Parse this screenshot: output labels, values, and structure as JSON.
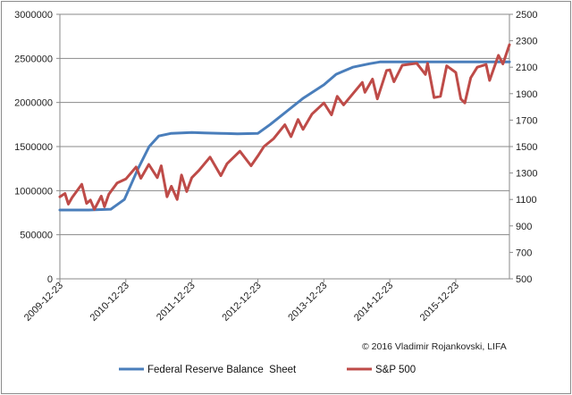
{
  "chart_data": {
    "type": "line",
    "title": "",
    "xlabel": "",
    "ylabel": "",
    "x_tick_labels": [
      "2009-12-23",
      "2010-12-23",
      "2011-12-23",
      "2012-12-23",
      "2013-12-23",
      "2014-12-23",
      "2015-12-23"
    ],
    "y_left": {
      "min": 0,
      "max": 3000000,
      "step": 500000,
      "tick_labels": [
        "0",
        "500000",
        "1000000",
        "1500000",
        "2000000",
        "2500000",
        "3000000"
      ]
    },
    "y_right": {
      "min": 500,
      "max": 2500,
      "step": 200,
      "tick_labels": [
        "500",
        "700",
        "900",
        "1100",
        "1300",
        "1500",
        "1700",
        "1900",
        "2100",
        "2300",
        "2500"
      ]
    },
    "x_range": [
      "2009-12-23",
      "2016-10-15"
    ],
    "grid": "horizontal",
    "legend_position": "bottom",
    "annotation": "© 2016 Vladimir Rojankovski, LIFA",
    "series": [
      {
        "name": "Federal Reserve Balance  Sheet",
        "axis": "left",
        "color": "#4a7ebb",
        "points": [
          [
            "2009-12-23",
            780000
          ],
          [
            "2010-06-01",
            780000
          ],
          [
            "2010-10-01",
            790000
          ],
          [
            "2010-12-15",
            900000
          ],
          [
            "2011-03-01",
            1250000
          ],
          [
            "2011-05-01",
            1500000
          ],
          [
            "2011-06-23",
            1620000
          ],
          [
            "2011-09-01",
            1650000
          ],
          [
            "2011-12-23",
            1660000
          ],
          [
            "2012-03-01",
            1655000
          ],
          [
            "2012-06-01",
            1650000
          ],
          [
            "2012-09-01",
            1645000
          ],
          [
            "2012-12-23",
            1650000
          ],
          [
            "2013-03-01",
            1750000
          ],
          [
            "2013-06-01",
            1900000
          ],
          [
            "2013-09-01",
            2050000
          ],
          [
            "2013-12-23",
            2200000
          ],
          [
            "2014-03-01",
            2320000
          ],
          [
            "2014-06-01",
            2400000
          ],
          [
            "2014-09-01",
            2440000
          ],
          [
            "2014-10-29",
            2460000
          ],
          [
            "2015-06-01",
            2460000
          ],
          [
            "2016-01-01",
            2460000
          ],
          [
            "2016-10-15",
            2460000
          ]
        ]
      },
      {
        "name": "S&P 500",
        "axis": "right",
        "color": "#be4b48",
        "points": [
          [
            "2009-12-23",
            1120
          ],
          [
            "2010-01-20",
            1145
          ],
          [
            "2010-02-08",
            1065
          ],
          [
            "2010-03-01",
            1115
          ],
          [
            "2010-04-23",
            1215
          ],
          [
            "2010-05-20",
            1070
          ],
          [
            "2010-06-10",
            1095
          ],
          [
            "2010-07-02",
            1025
          ],
          [
            "2010-08-09",
            1125
          ],
          [
            "2010-08-27",
            1045
          ],
          [
            "2010-09-20",
            1140
          ],
          [
            "2010-11-05",
            1225
          ],
          [
            "2010-12-23",
            1255
          ],
          [
            "2011-02-18",
            1345
          ],
          [
            "2011-03-16",
            1260
          ],
          [
            "2011-04-29",
            1365
          ],
          [
            "2011-06-15",
            1265
          ],
          [
            "2011-07-07",
            1355
          ],
          [
            "2011-08-08",
            1120
          ],
          [
            "2011-09-01",
            1200
          ],
          [
            "2011-10-03",
            1100
          ],
          [
            "2011-10-27",
            1285
          ],
          [
            "2011-11-25",
            1160
          ],
          [
            "2011-12-23",
            1265
          ],
          [
            "2012-02-01",
            1320
          ],
          [
            "2012-04-02",
            1420
          ],
          [
            "2012-06-01",
            1280
          ],
          [
            "2012-07-05",
            1370
          ],
          [
            "2012-09-14",
            1465
          ],
          [
            "2012-11-15",
            1355
          ],
          [
            "2012-12-23",
            1430
          ],
          [
            "2013-01-25",
            1500
          ],
          [
            "2013-03-20",
            1560
          ],
          [
            "2013-05-21",
            1665
          ],
          [
            "2013-06-24",
            1575
          ],
          [
            "2013-08-02",
            1705
          ],
          [
            "2013-08-30",
            1630
          ],
          [
            "2013-10-18",
            1745
          ],
          [
            "2013-12-23",
            1830
          ],
          [
            "2014-02-03",
            1740
          ],
          [
            "2014-03-07",
            1880
          ],
          [
            "2014-04-11",
            1815
          ],
          [
            "2014-07-24",
            1985
          ],
          [
            "2014-08-07",
            1910
          ],
          [
            "2014-09-18",
            2010
          ],
          [
            "2014-10-15",
            1860
          ],
          [
            "2014-12-05",
            2075
          ],
          [
            "2014-12-23",
            2080
          ],
          [
            "2015-01-15",
            1990
          ],
          [
            "2015-03-02",
            2115
          ],
          [
            "2015-05-21",
            2130
          ],
          [
            "2015-07-08",
            2045
          ],
          [
            "2015-07-20",
            2130
          ],
          [
            "2015-08-25",
            1870
          ],
          [
            "2015-09-29",
            1880
          ],
          [
            "2015-11-03",
            2110
          ],
          [
            "2015-12-23",
            2060
          ],
          [
            "2016-01-20",
            1860
          ],
          [
            "2016-02-11",
            1830
          ],
          [
            "2016-03-15",
            2020
          ],
          [
            "2016-04-20",
            2100
          ],
          [
            "2016-06-08",
            2120
          ],
          [
            "2016-06-27",
            2000
          ],
          [
            "2016-08-15",
            2190
          ],
          [
            "2016-09-09",
            2125
          ],
          [
            "2016-10-15",
            2270
          ]
        ]
      }
    ]
  }
}
